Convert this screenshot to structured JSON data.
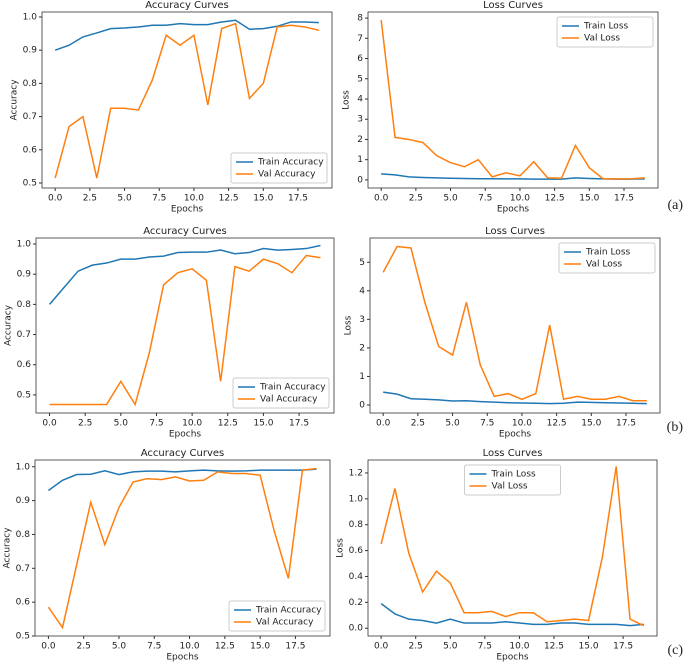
{
  "chart_data": [
    {
      "type": "line",
      "title": "Accuracy Curves",
      "xlabel": "Epochs",
      "ylabel": "Accuracy",
      "legend": "lower right",
      "x": [
        0,
        1,
        2,
        3,
        4,
        5,
        6,
        7,
        8,
        9,
        10,
        11,
        12,
        13,
        14,
        15,
        16,
        17,
        18,
        19
      ],
      "xlim": [
        -0.95,
        19.95
      ],
      "xticks": [
        {
          "value": 0,
          "label": "0.0"
        },
        2.5,
        {
          "value": 5,
          "label": "5.0"
        },
        7.5,
        {
          "value": 10,
          "label": "10.0"
        },
        12.5,
        {
          "value": 15,
          "label": "15.0"
        },
        17.5
      ],
      "ylim": [
        0.485,
        1.015
      ],
      "yticks": [
        0.5,
        0.6,
        0.7,
        0.8,
        0.9,
        {
          "value": 1,
          "label": "1.0"
        }
      ],
      "series": [
        {
          "name": "Train Accuracy",
          "color": "#1f77b4",
          "values": [
            0.9,
            0.915,
            0.94,
            0.952,
            0.965,
            0.967,
            0.97,
            0.975,
            0.975,
            0.98,
            0.977,
            0.977,
            0.985,
            0.99,
            0.963,
            0.965,
            0.972,
            0.985,
            0.985,
            0.983
          ]
        },
        {
          "name": "Val Accuracy",
          "color": "#ff7f0e",
          "values": [
            0.515,
            0.67,
            0.7,
            0.515,
            0.725,
            0.725,
            0.72,
            0.81,
            0.945,
            0.915,
            0.945,
            0.735,
            0.965,
            0.98,
            0.755,
            0.8,
            0.97,
            0.975,
            0.97,
            0.96
          ]
        }
      ]
    },
    {
      "type": "line",
      "title": "Loss Curves",
      "xlabel": "Epochs",
      "ylabel": "Loss",
      "legend": "upper right",
      "x": [
        0,
        1,
        2,
        3,
        4,
        5,
        6,
        7,
        8,
        9,
        10,
        11,
        12,
        13,
        14,
        15,
        16,
        17,
        18,
        19
      ],
      "xlim": [
        -0.95,
        19.95
      ],
      "xticks": [
        {
          "value": 0,
          "label": "0.0"
        },
        2.5,
        {
          "value": 5,
          "label": "5.0"
        },
        7.5,
        {
          "value": 10,
          "label": "10.0"
        },
        12.5,
        {
          "value": 15,
          "label": "15.0"
        },
        17.5
      ],
      "ylim": [
        -0.4,
        8.3
      ],
      "yticks": [
        0,
        1,
        2,
        3,
        4,
        5,
        6,
        7,
        8
      ],
      "series": [
        {
          "name": "Train Loss",
          "color": "#1f77b4",
          "values": [
            0.3,
            0.25,
            0.15,
            0.12,
            0.1,
            0.08,
            0.07,
            0.06,
            0.06,
            0.05,
            0.05,
            0.04,
            0.04,
            0.04,
            0.1,
            0.07,
            0.05,
            0.04,
            0.04,
            0.05
          ]
        },
        {
          "name": "Val Loss",
          "color": "#ff7f0e",
          "values": [
            7.9,
            2.1,
            2.0,
            1.85,
            1.2,
            0.85,
            0.65,
            1.0,
            0.15,
            0.35,
            0.2,
            0.9,
            0.1,
            0.08,
            1.7,
            0.6,
            0.05,
            0.05,
            0.05,
            0.1
          ]
        }
      ]
    },
    {
      "type": "line",
      "title": "Accuracy Curves",
      "xlabel": "Epochs",
      "ylabel": "Accuracy",
      "legend": "lower right",
      "x": [
        0,
        1,
        2,
        3,
        4,
        5,
        6,
        7,
        8,
        9,
        10,
        11,
        12,
        13,
        14,
        15,
        16,
        17,
        18,
        19
      ],
      "xlim": [
        -0.95,
        19.95
      ],
      "xticks": [
        {
          "value": 0,
          "label": "0.0"
        },
        2.5,
        {
          "value": 5,
          "label": "5.0"
        },
        7.5,
        {
          "value": 10,
          "label": "10.0"
        },
        12.5,
        {
          "value": 15,
          "label": "15.0"
        },
        17.5
      ],
      "ylim": [
        0.44,
        1.02
      ],
      "yticks": [
        0.5,
        0.6,
        0.7,
        0.8,
        0.9,
        {
          "value": 1,
          "label": "1.0"
        }
      ],
      "series": [
        {
          "name": "Train Accuracy",
          "color": "#1f77b4",
          "values": [
            0.8,
            0.855,
            0.91,
            0.93,
            0.937,
            0.95,
            0.95,
            0.957,
            0.96,
            0.972,
            0.973,
            0.973,
            0.98,
            0.968,
            0.972,
            0.985,
            0.98,
            0.982,
            0.985,
            0.995
          ]
        },
        {
          "name": "Val Accuracy",
          "color": "#ff7f0e",
          "values": [
            0.468,
            0.468,
            0.468,
            0.468,
            0.468,
            0.545,
            0.468,
            0.64,
            0.865,
            0.905,
            0.918,
            0.88,
            0.545,
            0.925,
            0.91,
            0.95,
            0.935,
            0.905,
            0.962,
            0.955
          ]
        }
      ]
    },
    {
      "type": "line",
      "title": "Loss Curves",
      "xlabel": "Epochs",
      "ylabel": "Loss",
      "legend": "upper right",
      "x": [
        0,
        1,
        2,
        3,
        4,
        5,
        6,
        7,
        8,
        9,
        10,
        11,
        12,
        13,
        14,
        15,
        16,
        17,
        18,
        19
      ],
      "xlim": [
        -0.95,
        19.95
      ],
      "xticks": [
        {
          "value": 0,
          "label": "0.0"
        },
        2.5,
        {
          "value": 5,
          "label": "5.0"
        },
        7.5,
        {
          "value": 10,
          "label": "10.0"
        },
        12.5,
        {
          "value": 15,
          "label": "15.0"
        },
        17.5
      ],
      "ylim": [
        -0.28,
        5.85
      ],
      "yticks": [
        0,
        1,
        2,
        3,
        4,
        5
      ],
      "series": [
        {
          "name": "Train Loss",
          "color": "#1f77b4",
          "values": [
            0.45,
            0.38,
            0.22,
            0.2,
            0.18,
            0.14,
            0.15,
            0.12,
            0.1,
            0.08,
            0.07,
            0.06,
            0.05,
            0.06,
            0.1,
            0.09,
            0.08,
            0.07,
            0.06,
            0.05
          ]
        },
        {
          "name": "Val Loss",
          "color": "#ff7f0e",
          "values": [
            4.65,
            5.55,
            5.5,
            3.6,
            2.05,
            1.75,
            3.6,
            1.4,
            0.3,
            0.4,
            0.2,
            0.4,
            2.8,
            0.2,
            0.3,
            0.2,
            0.2,
            0.3,
            0.15,
            0.15
          ]
        }
      ]
    },
    {
      "type": "line",
      "title": "Accuracy Curves",
      "xlabel": "Epochs",
      "ylabel": "Accuracy",
      "legend": "lower right",
      "x": [
        0,
        1,
        2,
        3,
        4,
        5,
        6,
        7,
        8,
        9,
        10,
        11,
        12,
        13,
        14,
        15,
        16,
        17,
        18,
        19
      ],
      "xlim": [
        -0.95,
        19.95
      ],
      "xticks": [
        {
          "value": 0,
          "label": "0.0"
        },
        2.5,
        {
          "value": 5,
          "label": "5.0"
        },
        7.5,
        {
          "value": 10,
          "label": "10.0"
        },
        12.5,
        {
          "value": 15,
          "label": "15.0"
        },
        17.5
      ],
      "ylim": [
        0.5,
        1.02
      ],
      "yticks": [
        0.5,
        0.6,
        0.7,
        0.8,
        0.9,
        {
          "value": 1,
          "label": "1.0"
        }
      ],
      "series": [
        {
          "name": "Train Accuracy",
          "color": "#1f77b4",
          "values": [
            0.93,
            0.96,
            0.977,
            0.978,
            0.988,
            0.977,
            0.985,
            0.987,
            0.987,
            0.985,
            0.988,
            0.99,
            0.988,
            0.987,
            0.988,
            0.99,
            0.99,
            0.99,
            0.99,
            0.993
          ]
        },
        {
          "name": "Val Accuracy",
          "color": "#ff7f0e",
          "values": [
            0.585,
            0.525,
            0.71,
            0.895,
            0.77,
            0.88,
            0.955,
            0.965,
            0.962,
            0.97,
            0.958,
            0.96,
            0.985,
            0.98,
            0.98,
            0.975,
            0.81,
            0.67,
            0.99,
            0.995
          ]
        }
      ]
    },
    {
      "type": "line",
      "title": "Loss Curves",
      "xlabel": "Epochs",
      "ylabel": "Loss",
      "legend": "upper center",
      "x": [
        0,
        1,
        2,
        3,
        4,
        5,
        6,
        7,
        8,
        9,
        10,
        11,
        12,
        13,
        14,
        15,
        16,
        17,
        18,
        19
      ],
      "xlim": [
        -0.95,
        19.95
      ],
      "xticks": [
        {
          "value": 0,
          "label": "0.0"
        },
        2.5,
        {
          "value": 5,
          "label": "5.0"
        },
        7.5,
        {
          "value": 10,
          "label": "10.0"
        },
        12.5,
        {
          "value": 15,
          "label": "15.0"
        },
        17.5
      ],
      "ylim": [
        -0.06,
        1.3
      ],
      "yticks": [
        {
          "value": 0,
          "label": "0.0"
        },
        0.2,
        0.4,
        0.6,
        0.8,
        {
          "value": 1,
          "label": "1.0"
        },
        1.2
      ],
      "series": [
        {
          "name": "Train Loss",
          "color": "#1f77b4",
          "values": [
            0.19,
            0.11,
            0.07,
            0.06,
            0.04,
            0.07,
            0.04,
            0.04,
            0.04,
            0.05,
            0.04,
            0.03,
            0.03,
            0.04,
            0.04,
            0.03,
            0.03,
            0.03,
            0.02,
            0.03
          ]
        },
        {
          "name": "Val Loss",
          "color": "#ff7f0e",
          "values": [
            0.65,
            1.08,
            0.58,
            0.28,
            0.44,
            0.35,
            0.12,
            0.12,
            0.13,
            0.09,
            0.12,
            0.12,
            0.05,
            0.06,
            0.07,
            0.06,
            0.55,
            1.25,
            0.07,
            0.02
          ]
        }
      ]
    }
  ],
  "panel_labels": [
    "(a)",
    "(b)",
    "(c)"
  ]
}
